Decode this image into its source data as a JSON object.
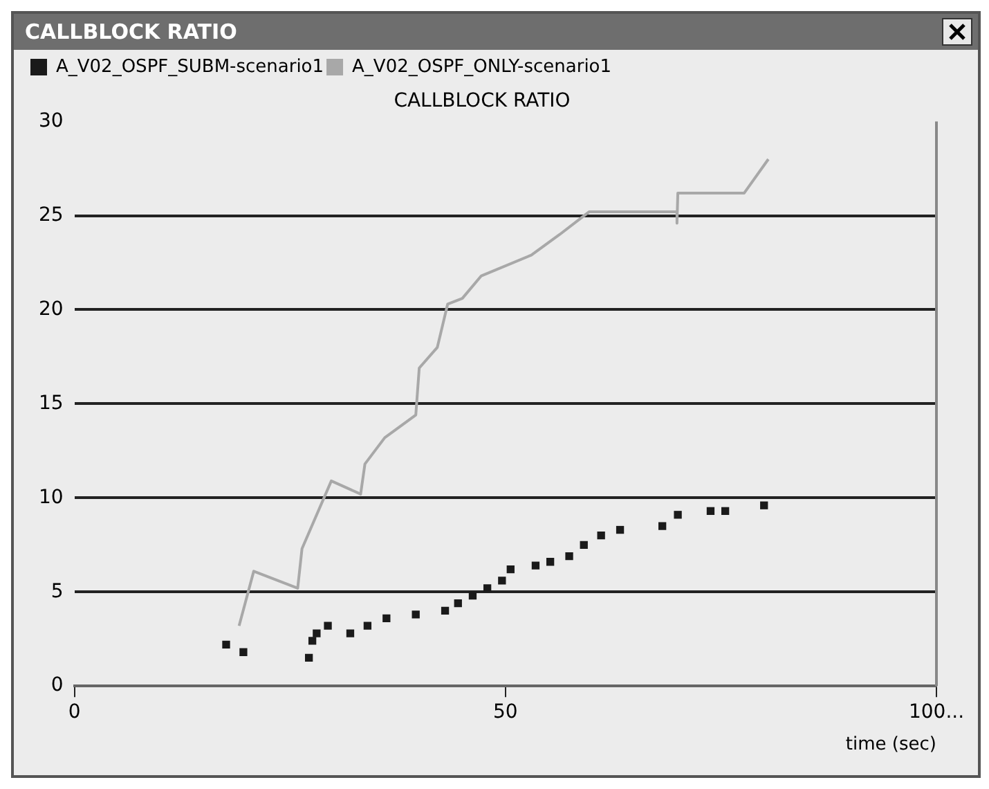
{
  "chart_data": {
    "type": "scatter",
    "title": "CALLBLOCK RATIO",
    "subtitle": "CALLBLOCK RATIO",
    "xlabel": "time (sec)",
    "xlim": [
      0,
      100
    ],
    "xticks": [
      0,
      50,
      {
        "value": 100,
        "label": "100..."
      }
    ],
    "ylim": [
      0,
      30
    ],
    "yticks": [
      0,
      5,
      10,
      15,
      20,
      25,
      30
    ],
    "grid": "y",
    "legend": "top left",
    "marker": "square",
    "series": [
      {
        "name": "A_V02_OSPF_SUBM-scenario1",
        "color": "#1a1a1a",
        "x": [
          17.6,
          19.6,
          27.2,
          27.6,
          28.1,
          29.4,
          32,
          34,
          36.2,
          39.6,
          43,
          44.5,
          46.2,
          47.9,
          49.6,
          50.6,
          53.5,
          55.2,
          57.4,
          59.1,
          61.1,
          63.3,
          68.2,
          70,
          73.8,
          75.5,
          80
        ],
        "values": [
          2.2,
          1.8,
          1.5,
          2.4,
          2.8,
          3.2,
          2.8,
          3.2,
          3.6,
          3.8,
          4.0,
          4.4,
          4.8,
          5.2,
          5.6,
          6.2,
          6.4,
          6.6,
          6.9,
          7.5,
          8.0,
          8.3,
          8.5,
          9.1,
          9.3,
          9.3,
          9.6
        ]
      },
      {
        "name": "A_V02_OSPF_ONLY-scenario1",
        "color": "#a8a8a8",
        "type": "line",
        "marker": "none",
        "x": [
          19.1,
          20.8,
          25.9,
          26.4,
          29.8,
          33.2,
          33.7,
          36,
          39.6,
          40,
          42.1,
          43.3,
          45,
          47.2,
          53,
          56.3,
          59.7,
          69.9,
          69.9,
          70,
          77.7,
          80.5
        ],
        "values": [
          3.2,
          6.1,
          5.2,
          7.3,
          10.9,
          10.2,
          11.8,
          13.2,
          14.4,
          16.9,
          18,
          20.3,
          20.6,
          21.8,
          22.9,
          24,
          25.2,
          25.2,
          24.6,
          26.2,
          26.2,
          28
        ]
      }
    ]
  }
}
